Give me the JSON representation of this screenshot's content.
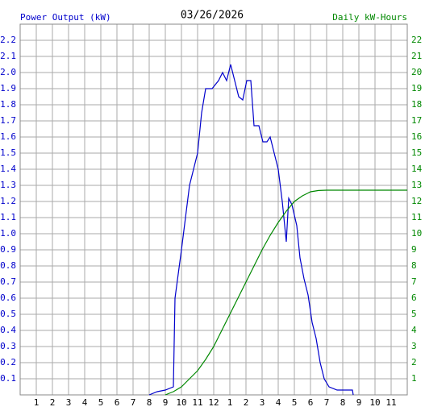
{
  "chart_data": {
    "type": "line",
    "title": "03/26/2026",
    "xlim": [
      0,
      24
    ],
    "xticks": [
      1,
      2,
      3,
      4,
      5,
      6,
      7,
      8,
      9,
      10,
      11,
      12,
      {
        "value": 13,
        "label": "1"
      },
      {
        "value": 14,
        "label": "2"
      },
      {
        "value": 15,
        "label": "3"
      },
      {
        "value": 16,
        "label": "4"
      },
      {
        "value": 17,
        "label": "5"
      },
      {
        "value": 18,
        "label": "6"
      },
      {
        "value": 19,
        "label": "7"
      },
      {
        "value": 20,
        "label": "8"
      },
      {
        "value": 21,
        "label": "9"
      },
      {
        "value": 22,
        "label": "10"
      },
      {
        "value": 23,
        "label": "11"
      }
    ],
    "ylim": [
      0,
      2.3
    ],
    "yticks": [
      0.1,
      0.2,
      0.3,
      0.4,
      0.5,
      0.6,
      0.7,
      0.8,
      0.9,
      {
        "value": 1,
        "label": "1.0"
      },
      1.1,
      1.2,
      1.3,
      1.4,
      1.5,
      1.6,
      1.7,
      1.8,
      1.9,
      {
        "value": 2,
        "label": "2.0"
      },
      2.1,
      2.2
    ],
    "y2lim": [
      0,
      23
    ],
    "y2ticks": [
      1,
      2,
      3,
      4,
      5,
      6,
      7,
      8,
      9,
      10,
      11,
      12,
      13,
      14,
      15,
      16,
      17,
      18,
      19,
      20,
      21,
      22
    ],
    "grid": true,
    "series": [
      {
        "name": "Power Output (kW)",
        "color": "#0000cc",
        "x": [
          8,
          8.5,
          9,
          9.5,
          9.6,
          9.8,
          10,
          10.25,
          10.5,
          10.75,
          11,
          11.25,
          11.5,
          11.9,
          12.3,
          12.55,
          12.8,
          13.05,
          13.3,
          13.55,
          13.8,
          14.05,
          14.3,
          14.5,
          14.8,
          15.05,
          15.3,
          15.5,
          15.75,
          16,
          16.25,
          16.5,
          16.65,
          16.85,
          17.15,
          17.35,
          17.6,
          17.85,
          18.1,
          18.35,
          18.6,
          18.85,
          19.15,
          19.65,
          20.6,
          20.65
        ],
        "values": [
          0,
          0.02,
          0.03,
          0.05,
          0.6,
          0.75,
          0.9,
          1.1,
          1.3,
          1.4,
          1.5,
          1.75,
          1.9,
          1.9,
          1.95,
          2.0,
          1.95,
          2.05,
          1.95,
          1.85,
          1.83,
          1.95,
          1.95,
          1.67,
          1.67,
          1.57,
          1.57,
          1.6,
          1.5,
          1.4,
          1.2,
          0.95,
          1.22,
          1.18,
          1.05,
          0.85,
          0.72,
          0.62,
          0.45,
          0.35,
          0.2,
          0.1,
          0.05,
          0.03,
          0.03,
          0
        ]
      },
      {
        "name": "Daily kW-Hours",
        "color": "#008800",
        "axis": "y2",
        "x": [
          9,
          9.5,
          10,
          10.5,
          11,
          11.5,
          12,
          12.5,
          13,
          13.5,
          14,
          14.5,
          15,
          15.5,
          16,
          16.5,
          17,
          17.5,
          18,
          18.5,
          19,
          24
        ],
        "values": [
          0,
          0.2,
          0.5,
          1,
          1.5,
          2.2,
          3,
          4,
          5,
          6,
          7,
          8,
          9,
          9.9,
          10.7,
          11.4,
          12,
          12.35,
          12.6,
          12.68,
          12.7,
          12.7
        ]
      }
    ]
  }
}
